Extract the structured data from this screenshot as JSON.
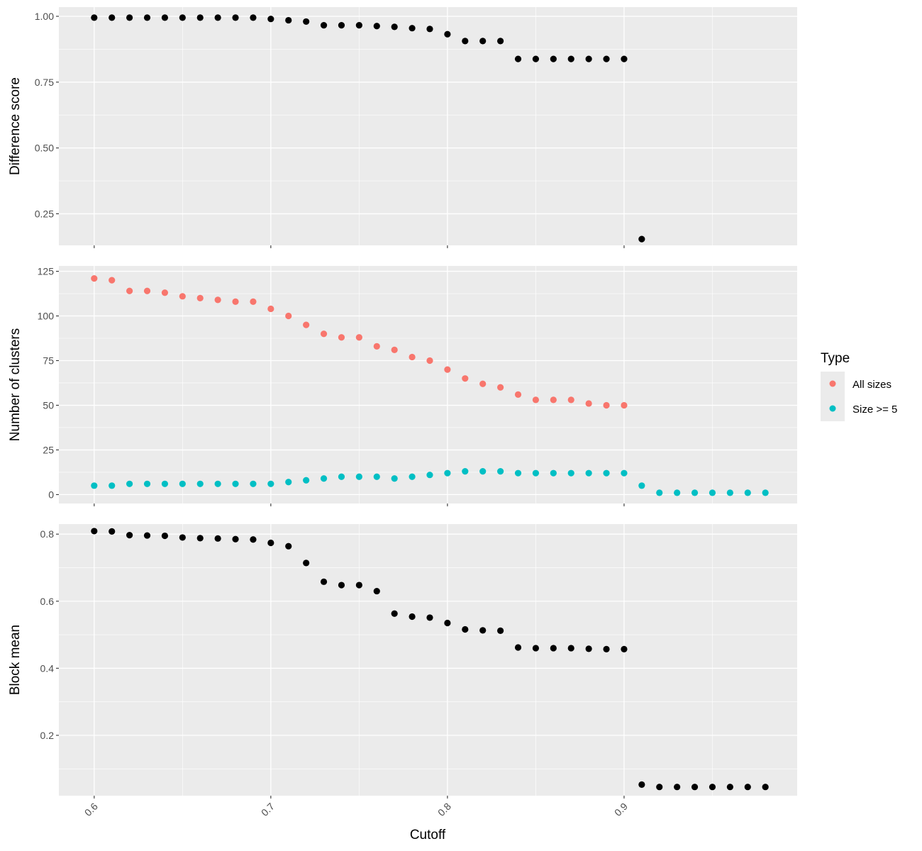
{
  "colors": {
    "panel_bg": "#EBEBEB",
    "grid": "#FFFFFF",
    "point_default": "#000000",
    "all_sizes": "#F8766D",
    "size_ge5": "#00BFC4",
    "tick_text": "#4D4D4D"
  },
  "xlabel": "Cutoff",
  "legend": {
    "title": "Type",
    "placement": "right",
    "items": [
      {
        "label": "All sizes",
        "color": "#F8766D"
      },
      {
        "label": "Size >= 5",
        "color": "#00BFC4"
      }
    ]
  },
  "chart_data": [
    {
      "type": "scatter",
      "ylabel": "Difference score",
      "xlim": [
        0.58,
        0.998
      ],
      "ylim": [
        0.13,
        1.035
      ],
      "x_ticks": [
        "0.6",
        "0.7",
        "0.8",
        "0.9"
      ],
      "y_ticks": [
        "0.25",
        "0.50",
        "0.75",
        "1.00"
      ],
      "grid": true,
      "series": [
        {
          "color": "#000000",
          "x": [
            0.6,
            0.61,
            0.62,
            0.63,
            0.64,
            0.65,
            0.66,
            0.67,
            0.68,
            0.69,
            0.7,
            0.71,
            0.72,
            0.73,
            0.74,
            0.75,
            0.76,
            0.77,
            0.78,
            0.79,
            0.8,
            0.81,
            0.82,
            0.83,
            0.84,
            0.85,
            0.86,
            0.87,
            0.88,
            0.89,
            0.9,
            0.91
          ],
          "y": [
            0.995,
            0.995,
            0.995,
            0.995,
            0.995,
            0.995,
            0.995,
            0.995,
            0.995,
            0.995,
            0.99,
            0.985,
            0.98,
            0.966,
            0.966,
            0.966,
            0.963,
            0.96,
            0.955,
            0.952,
            0.932,
            0.906,
            0.906,
            0.906,
            0.838,
            0.838,
            0.838,
            0.838,
            0.838,
            0.838,
            0.838,
            0.154
          ]
        }
      ]
    },
    {
      "type": "scatter",
      "ylabel": "Number of clusters",
      "xlim": [
        0.58,
        0.998
      ],
      "ylim": [
        -5,
        128
      ],
      "x_ticks": [
        "0.6",
        "0.7",
        "0.8",
        "0.9"
      ],
      "y_ticks": [
        "0",
        "25",
        "50",
        "75",
        "100",
        "125"
      ],
      "grid": true,
      "series": [
        {
          "name": "All sizes",
          "color": "#F8766D",
          "x": [
            0.6,
            0.61,
            0.62,
            0.63,
            0.64,
            0.65,
            0.66,
            0.67,
            0.68,
            0.69,
            0.7,
            0.71,
            0.72,
            0.73,
            0.74,
            0.75,
            0.76,
            0.77,
            0.78,
            0.79,
            0.8,
            0.81,
            0.82,
            0.83,
            0.84,
            0.85,
            0.86,
            0.87,
            0.88,
            0.89,
            0.9
          ],
          "y": [
            121,
            120,
            114,
            114,
            113,
            111,
            110,
            109,
            108,
            108,
            104,
            100,
            95,
            90,
            88,
            88,
            83,
            81,
            77,
            75,
            70,
            65,
            62,
            60,
            56,
            53,
            53,
            53,
            51,
            50,
            50
          ]
        },
        {
          "name": "Size >= 5",
          "color": "#00BFC4",
          "x": [
            0.6,
            0.61,
            0.62,
            0.63,
            0.64,
            0.65,
            0.66,
            0.67,
            0.68,
            0.69,
            0.7,
            0.71,
            0.72,
            0.73,
            0.74,
            0.75,
            0.76,
            0.77,
            0.78,
            0.79,
            0.8,
            0.81,
            0.82,
            0.83,
            0.84,
            0.85,
            0.86,
            0.87,
            0.88,
            0.89,
            0.9,
            0.91,
            0.92,
            0.93,
            0.94,
            0.95,
            0.96,
            0.97,
            0.98
          ],
          "y": [
            5,
            5,
            6,
            6,
            6,
            6,
            6,
            6,
            6,
            6,
            6,
            7,
            8,
            9,
            10,
            10,
            10,
            9,
            10,
            11,
            12,
            13,
            13,
            13,
            12,
            12,
            12,
            12,
            12,
            12,
            12,
            5,
            1,
            1,
            1,
            1,
            1,
            1,
            1
          ]
        }
      ]
    },
    {
      "type": "scatter",
      "ylabel": "Block mean",
      "xlim": [
        0.58,
        0.998
      ],
      "ylim": [
        0.02,
        0.83
      ],
      "x_ticks": [
        "0.6",
        "0.7",
        "0.8",
        "0.9"
      ],
      "y_ticks": [
        "0.2",
        "0.4",
        "0.6",
        "0.8"
      ],
      "grid": true,
      "series": [
        {
          "color": "#000000",
          "x": [
            0.6,
            0.61,
            0.62,
            0.63,
            0.64,
            0.65,
            0.66,
            0.67,
            0.68,
            0.69,
            0.7,
            0.71,
            0.72,
            0.73,
            0.74,
            0.75,
            0.76,
            0.77,
            0.78,
            0.79,
            0.8,
            0.81,
            0.82,
            0.83,
            0.84,
            0.85,
            0.86,
            0.87,
            0.88,
            0.89,
            0.9,
            0.91,
            0.92,
            0.93,
            0.94,
            0.95,
            0.96,
            0.97,
            0.98
          ],
          "y": [
            0.809,
            0.808,
            0.797,
            0.796,
            0.795,
            0.79,
            0.788,
            0.787,
            0.785,
            0.784,
            0.774,
            0.764,
            0.714,
            0.658,
            0.648,
            0.648,
            0.63,
            0.563,
            0.554,
            0.551,
            0.535,
            0.516,
            0.513,
            0.512,
            0.462,
            0.46,
            0.46,
            0.46,
            0.458,
            0.457,
            0.457,
            0.053,
            0.046,
            0.046,
            0.046,
            0.046,
            0.046,
            0.046,
            0.046
          ]
        }
      ]
    }
  ]
}
